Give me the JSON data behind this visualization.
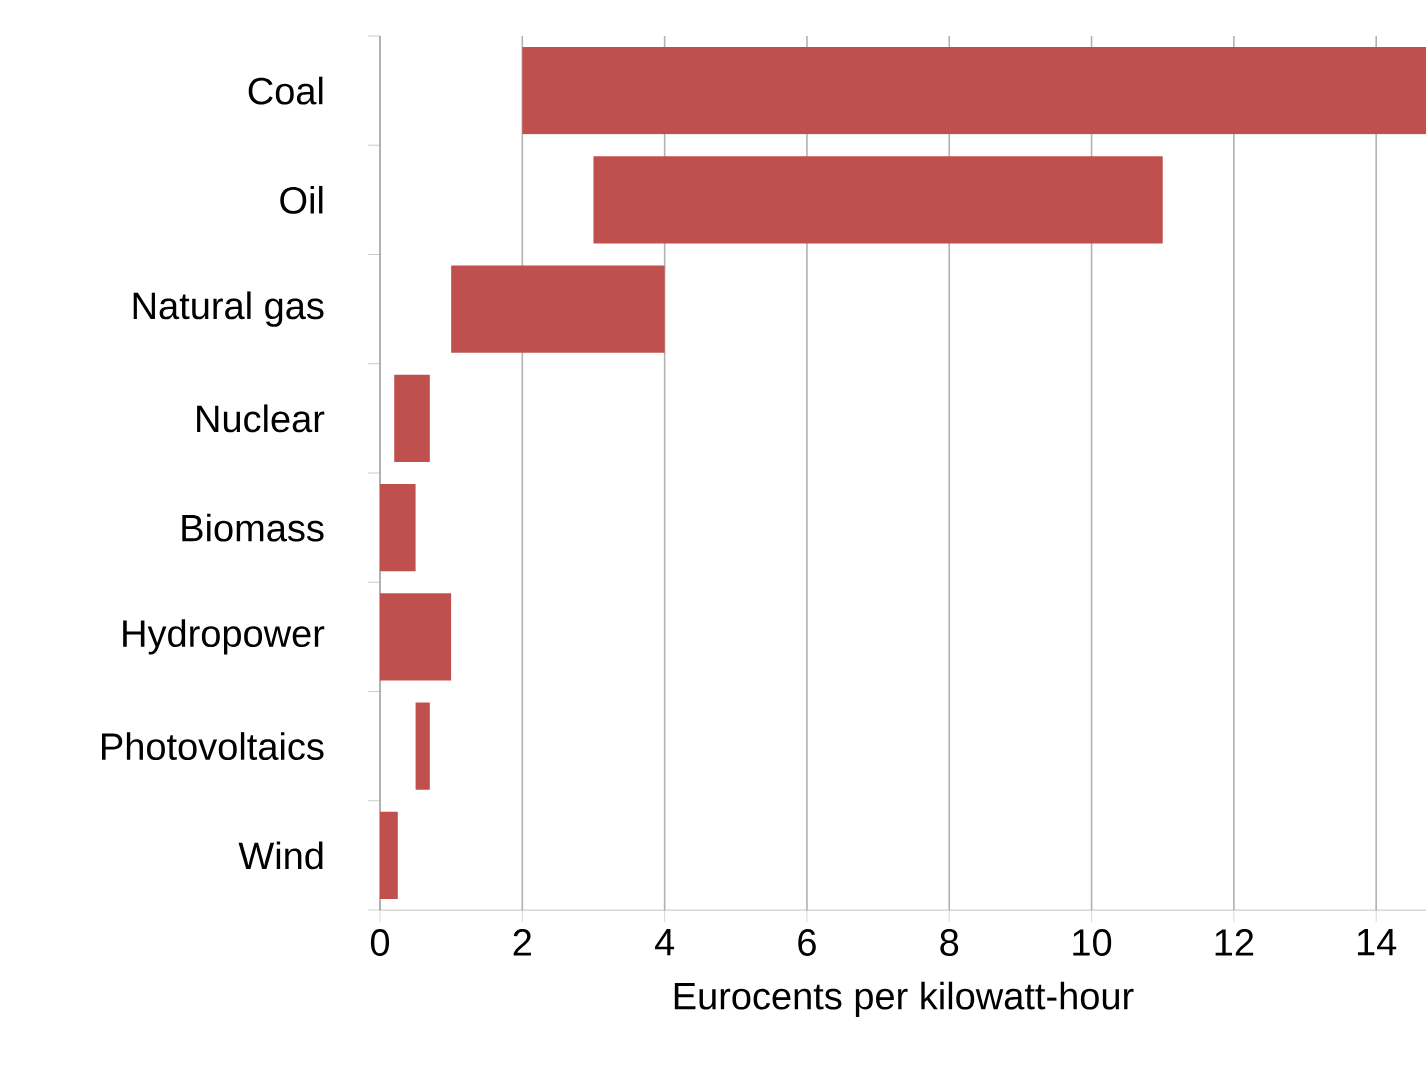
{
  "chart_data": {
    "type": "bar",
    "orientation": "horizontal",
    "xlabel": "Eurocents per kilowatt-hour",
    "categories": [
      "Coal",
      "Oil",
      "Natural gas",
      "Nuclear",
      "Biomass",
      "Hydropower",
      "Photovoltaics",
      "Wind"
    ],
    "base": [
      2,
      3,
      1,
      0.2,
      0,
      0,
      0.5,
      0
    ],
    "values": [
      12.7,
      8,
      3,
      0.5,
      0.5,
      1,
      0.2,
      0.25
    ],
    "color": "#c0504d",
    "xlim": [
      0,
      14.7
    ],
    "xticks": [
      0,
      2,
      4,
      6,
      8,
      10,
      12,
      14
    ],
    "grid": "x"
  }
}
